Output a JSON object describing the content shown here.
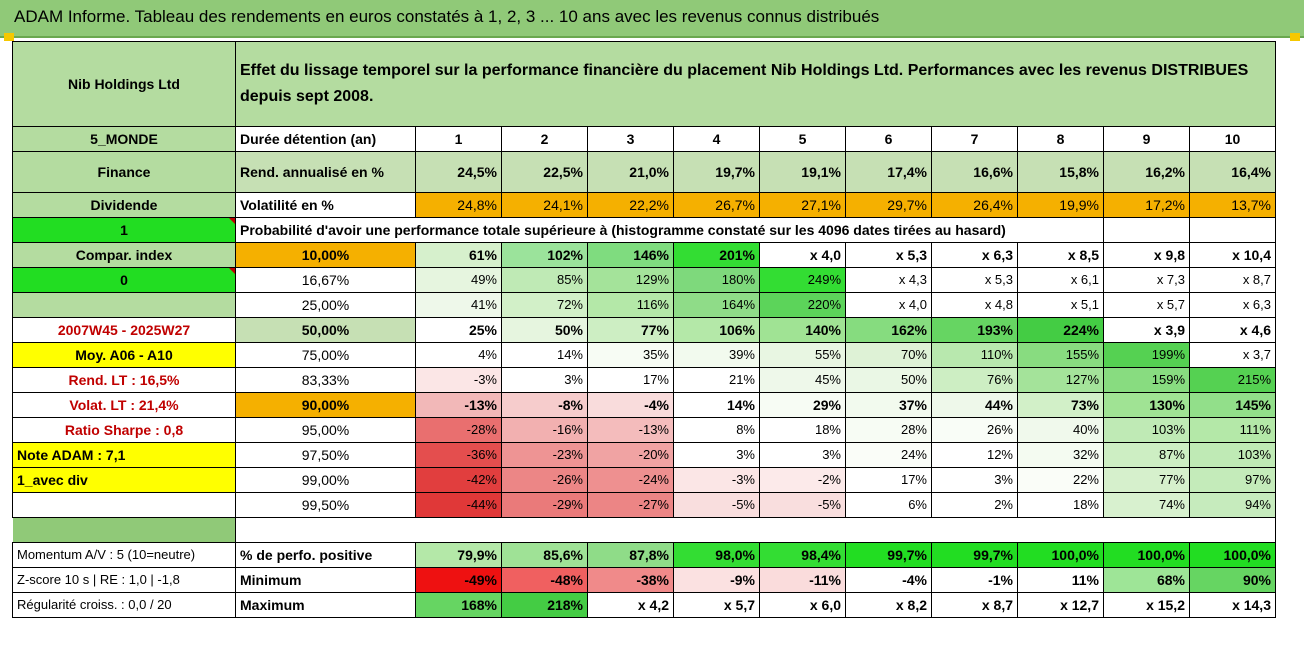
{
  "header": {
    "title": "ADAM Informe. Tableau des rendements en euros constatés à 1, 2, 3 ... 10 ans avec les revenus connus distribués"
  },
  "left": {
    "name": "Nib Holdings Ltd",
    "region": "5_MONDE",
    "sector": "Finance",
    "dividend_label": "Dividende",
    "flag1": "1",
    "compar_label": "Compar. index",
    "flag0": "0",
    "period": "2007W45 - 2025W27",
    "moy": "Moy. A06 - A10",
    "rend_lt": "Rend. LT :   16,5%",
    "volat_lt": "Volat. LT :   21,4%",
    "sharpe": "Ratio Sharpe :   0,8",
    "note": "Note ADAM : 7,1",
    "avec_div": "1_avec div"
  },
  "intro": "Effet du lissage temporel sur la performance financière du placement Nib Holdings Ltd. Performances avec les revenus DISTRIBUES depuis sept 2008.",
  "duration": {
    "label": "Durée détention (an)",
    "years": [
      "1",
      "2",
      "3",
      "4",
      "5",
      "6",
      "7",
      "8",
      "9",
      "10"
    ]
  },
  "rend": {
    "label": "Rend. annualisé en %",
    "values": [
      "24,5%",
      "22,5%",
      "21,0%",
      "19,7%",
      "19,1%",
      "17,4%",
      "16,6%",
      "15,8%",
      "16,2%",
      "16,4%"
    ]
  },
  "volat": {
    "label": "Volatilité en %",
    "values": [
      "24,8%",
      "24,1%",
      "22,2%",
      "26,7%",
      "27,1%",
      "29,7%",
      "26,4%",
      "19,9%",
      "17,2%",
      "13,7%"
    ]
  },
  "proba_title": "Probabilité d'avoir une performance totale supérieure à (histogramme constaté sur les 4096 dates tirées au hasard)",
  "prob_rows": [
    {
      "pct": "10,00%",
      "values": [
        "61%",
        "102%",
        "146%",
        "201%",
        "x 4,0",
        "x 5,3",
        "x 6,3",
        "x 8,5",
        "x 9,8",
        "x 10,4"
      ],
      "colors": [
        "#d6f0cc",
        "#9be39b",
        "#7fdc7f",
        "#33dd33",
        "#ffffff",
        "#ffffff",
        "#ffffff",
        "#ffffff",
        "#ffffff",
        "#ffffff"
      ]
    },
    {
      "pct": "16,67%",
      "values": [
        "49%",
        "85%",
        "129%",
        "180%",
        "249%",
        "x 4,3",
        "x 5,3",
        "x 6,1",
        "x 7,3",
        "x 8,7"
      ],
      "colors": [
        "#e6f5df",
        "#bfeab5",
        "#a4e39a",
        "#7ed97c",
        "#33dd33",
        "#ffffff",
        "#ffffff",
        "#ffffff",
        "#ffffff",
        "#ffffff"
      ]
    },
    {
      "pct": "25,00%",
      "values": [
        "41%",
        "72%",
        "116%",
        "164%",
        "220%",
        "x 4,0",
        "x 4,8",
        "x 5,1",
        "x 5,7",
        "x 6,3"
      ],
      "colors": [
        "#eef8ea",
        "#d2f0c8",
        "#b4e8a8",
        "#8fdc88",
        "#5cd45a",
        "#ffffff",
        "#ffffff",
        "#ffffff",
        "#ffffff",
        "#ffffff"
      ]
    },
    {
      "pct": "50,00%",
      "values": [
        "25%",
        "50%",
        "77%",
        "106%",
        "140%",
        "162%",
        "193%",
        "224%",
        "x 3,9",
        "x 4,6"
      ],
      "colors": [
        "#ffffff",
        "#e6f5df",
        "#cdeec3",
        "#b4e8a8",
        "#a0e394",
        "#86dc7f",
        "#66d562",
        "#44cc44",
        "#ffffff",
        "#ffffff"
      ]
    },
    {
      "pct": "75,00%",
      "values": [
        "4%",
        "14%",
        "35%",
        "39%",
        "55%",
        "70%",
        "110%",
        "155%",
        "199%",
        "x 3,7"
      ],
      "colors": [
        "#ffffff",
        "#ffffff",
        "#f7fcf4",
        "#f2faee",
        "#e8f6e2",
        "#def2d6",
        "#b8e8ae",
        "#88dc80",
        "#55d152",
        "#ffffff"
      ]
    },
    {
      "pct": "83,33%",
      "values": [
        "-3%",
        "3%",
        "17%",
        "21%",
        "45%",
        "50%",
        "76%",
        "127%",
        "159%",
        "215%"
      ],
      "colors": [
        "#fbe6e6",
        "#ffffff",
        "#ffffff",
        "#ffffff",
        "#eef8ea",
        "#eaf7e5",
        "#cdeec3",
        "#a4e39a",
        "#88dc80",
        "#55d152"
      ]
    },
    {
      "pct": "90,00%",
      "values": [
        "-13%",
        "-8%",
        "-4%",
        "14%",
        "29%",
        "37%",
        "44%",
        "73%",
        "130%",
        "145%"
      ],
      "colors": [
        "#f2b8b8",
        "#f6cccc",
        "#f9dcdc",
        "#ffffff",
        "#f7fcf4",
        "#f2faee",
        "#eef8ea",
        "#d2f0c8",
        "#a0e394",
        "#92df8a"
      ]
    },
    {
      "pct": "95,00%",
      "values": [
        "-28%",
        "-16%",
        "-13%",
        "8%",
        "18%",
        "28%",
        "26%",
        "40%",
        "103%",
        "111%"
      ],
      "colors": [
        "#e96f6f",
        "#f2b0b0",
        "#f4bcbc",
        "#ffffff",
        "#ffffff",
        "#f7fcf4",
        "#f9fdf7",
        "#f0f9ec",
        "#bfeab5",
        "#b4e8a8"
      ]
    },
    {
      "pct": "97,50%",
      "values": [
        "-36%",
        "-23%",
        "-20%",
        "3%",
        "3%",
        "24%",
        "12%",
        "32%",
        "87%",
        "103%"
      ],
      "colors": [
        "#e44e4e",
        "#ee9494",
        "#f0a3a3",
        "#ffffff",
        "#ffffff",
        "#fafdf8",
        "#ffffff",
        "#f4fbf1",
        "#cdeec3",
        "#bfeab5"
      ]
    },
    {
      "pct": "99,00%",
      "values": [
        "-42%",
        "-26%",
        "-24%",
        "-3%",
        "-2%",
        "17%",
        "3%",
        "22%",
        "77%",
        "97%"
      ],
      "colors": [
        "#e13e3e",
        "#ec8686",
        "#ee9090",
        "#fbe6e6",
        "#fceaea",
        "#ffffff",
        "#ffffff",
        "#fafdf8",
        "#d6f0cc",
        "#c4ebba"
      ]
    },
    {
      "pct": "99,50%",
      "values": [
        "-44%",
        "-29%",
        "-27%",
        "-5%",
        "-5%",
        "6%",
        "2%",
        "18%",
        "74%",
        "94%"
      ],
      "colors": [
        "#e03838",
        "#ea7a7a",
        "#ec8585",
        "#f9dede",
        "#f9dede",
        "#ffffff",
        "#ffffff",
        "#ffffff",
        "#d8f1cf",
        "#c6ebbd"
      ]
    }
  ],
  "stats": [
    {
      "left": "Momentum A/V : 5 (10=neutre)",
      "label": "% de perfo. positive",
      "values": [
        "79,9%",
        "85,6%",
        "87,8%",
        "98,0%",
        "98,4%",
        "99,7%",
        "99,7%",
        "100,0%",
        "100,0%",
        "100,0%"
      ],
      "colors": [
        "#b4e8a8",
        "#9fe296",
        "#8fdc88",
        "#33dd33",
        "#33dd33",
        "#22dd22",
        "#22dd22",
        "#22dd22",
        "#22dd22",
        "#22dd22"
      ]
    },
    {
      "left": "Z-score 10 s | RE : 1,0 | -1,8",
      "label": "Minimum",
      "values": [
        "-49%",
        "-48%",
        "-38%",
        "-9%",
        "-11%",
        "-4%",
        "-1%",
        "11%",
        "68%",
        "90%"
      ],
      "colors": [
        "#ee1111",
        "#f06060",
        "#f08a8a",
        "#fbe1e1",
        "#fadcdc",
        "#ffffff",
        "#ffffff",
        "#ffffff",
        "#9ee597",
        "#66d562"
      ]
    },
    {
      "left": "Régularité croiss. : 0,0 / 20",
      "label": "Maximum",
      "values": [
        "168%",
        "218%",
        "x 4,2",
        "x 5,7",
        "x 6,0",
        "x 8,2",
        "x 8,7",
        "x 12,7",
        "x 15,2",
        "x 14,3"
      ],
      "colors": [
        "#66d562",
        "#44cc44",
        "#ffffff",
        "#ffffff",
        "#ffffff",
        "#ffffff",
        "#ffffff",
        "#ffffff",
        "#ffffff",
        "#ffffff"
      ]
    }
  ]
}
